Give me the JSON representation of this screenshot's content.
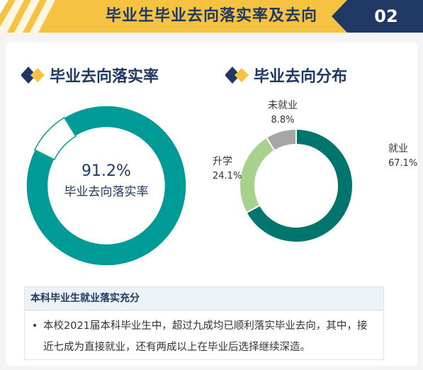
{
  "header": {
    "title": "毕业生毕业去向落实率及去向",
    "number": "02"
  },
  "sections": {
    "left_title": "毕业去向落实率",
    "right_title": "毕业去向分布"
  },
  "chart_data": [
    {
      "type": "pie",
      "style": "donut",
      "center_value": "91.2%",
      "center_label": "毕业去向落实率",
      "slices": [
        {
          "label": "毕业去向落实率",
          "value": 91.2,
          "color": "#009b96"
        },
        {
          "label": "",
          "value": 8.8,
          "color": "#ffffff"
        }
      ]
    },
    {
      "type": "pie",
      "style": "donut",
      "slices": [
        {
          "label": "就业",
          "value_text": "67.1%",
          "value": 67.1,
          "color": "#00756e"
        },
        {
          "label": "升学",
          "value_text": "24.1%",
          "value": 24.1,
          "color": "#a9d18e"
        },
        {
          "label": "未就业",
          "value_text": "8.8%",
          "value": 8.8,
          "color": "#a6a6a6"
        }
      ]
    }
  ],
  "note": {
    "title": "本科毕业生就业落实充分",
    "bullet": "•",
    "text": "本校2021届本科毕业生中，超过九成均已顺利落实毕业去向，其中，接近七成为直接就业，还有两成以上在毕业后选择继续深造。"
  },
  "colors": {
    "banner": "#f5c242",
    "navy": "#1f3864",
    "teal": "#009b96",
    "dark_teal": "#00756e",
    "light_green": "#a9d18e",
    "gray": "#a6a6a6"
  }
}
